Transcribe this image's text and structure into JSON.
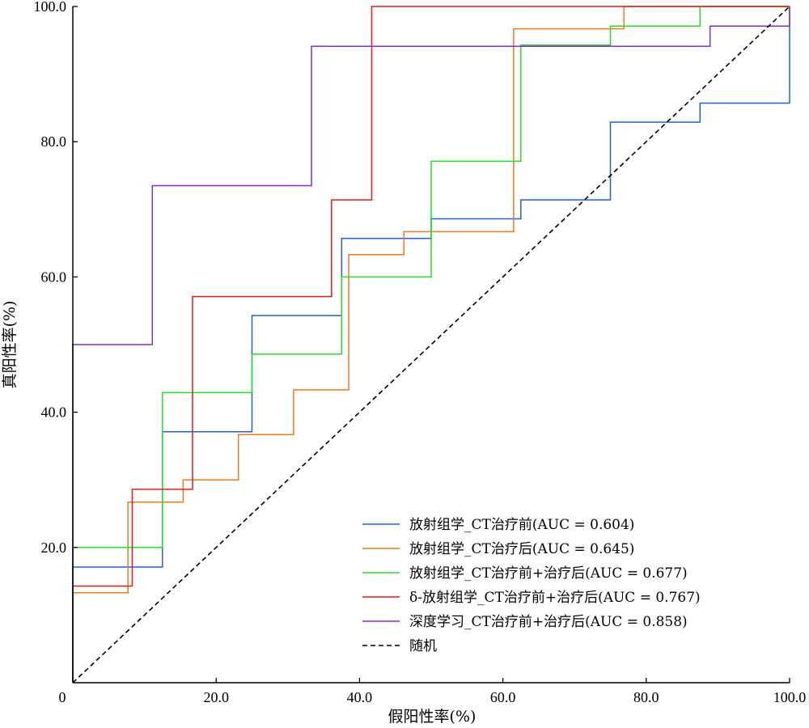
{
  "chart_data": {
    "type": "line",
    "title": "",
    "xlabel": "假阳性率(%)",
    "ylabel": "真阳性率(%)",
    "xlim": [
      0,
      100
    ],
    "ylim": [
      0,
      100
    ],
    "x_ticks": [
      {
        "value": 0,
        "label": "0"
      },
      {
        "value": 20,
        "label": "20.0"
      },
      {
        "value": 40,
        "label": "40.0"
      },
      {
        "value": 60,
        "label": "60.0"
      },
      {
        "value": 80,
        "label": "80.0"
      },
      {
        "value": 100,
        "label": "100.0"
      }
    ],
    "y_ticks": [
      {
        "value": 20,
        "label": "20.0"
      },
      {
        "value": 40,
        "label": "40.0"
      },
      {
        "value": 60,
        "label": "60.0"
      },
      {
        "value": 80,
        "label": "80.0"
      },
      {
        "value": 100,
        "label": "100.0"
      }
    ],
    "grid": false,
    "legend_position": "bottom-right",
    "series": [
      {
        "name": "放射组学_CT治疗前(AUC = 0.604)",
        "color": "#1f5fe0",
        "points": [
          [
            0,
            0
          ],
          [
            0,
            17.1
          ],
          [
            12.5,
            17.1
          ],
          [
            12.5,
            37.1
          ],
          [
            25,
            37.1
          ],
          [
            25,
            54.3
          ],
          [
            37.5,
            54.3
          ],
          [
            37.5,
            65.7
          ],
          [
            50,
            65.7
          ],
          [
            50,
            68.6
          ],
          [
            62.5,
            68.6
          ],
          [
            62.5,
            71.4
          ],
          [
            75,
            71.4
          ],
          [
            75,
            82.9
          ],
          [
            87.5,
            82.9
          ],
          [
            87.5,
            85.7
          ],
          [
            100,
            85.7
          ],
          [
            100,
            100
          ]
        ]
      },
      {
        "name": "放射组学_CT治疗后(AUC = 0.645)",
        "color": "#f07a1e",
        "points": [
          [
            0,
            0
          ],
          [
            0,
            13.3
          ],
          [
            7.7,
            13.3
          ],
          [
            7.7,
            26.7
          ],
          [
            15.4,
            26.7
          ],
          [
            15.4,
            30
          ],
          [
            23.1,
            30
          ],
          [
            23.1,
            36.7
          ],
          [
            30.8,
            36.7
          ],
          [
            30.8,
            43.3
          ],
          [
            38.5,
            43.3
          ],
          [
            38.5,
            63.3
          ],
          [
            46.2,
            63.3
          ],
          [
            46.2,
            66.7
          ],
          [
            61.5,
            66.7
          ],
          [
            61.5,
            96.7
          ],
          [
            76.9,
            96.7
          ],
          [
            76.9,
            100
          ],
          [
            100,
            100
          ]
        ]
      },
      {
        "name": "放射组学_CT治疗前+治疗后(AUC = 0.677)",
        "color": "#22e022",
        "points": [
          [
            0,
            0
          ],
          [
            0,
            20
          ],
          [
            12.5,
            20
          ],
          [
            12.5,
            42.9
          ],
          [
            25,
            42.9
          ],
          [
            25,
            48.6
          ],
          [
            37.5,
            48.6
          ],
          [
            37.5,
            60
          ],
          [
            50,
            60
          ],
          [
            50,
            77.1
          ],
          [
            62.5,
            77.1
          ],
          [
            62.5,
            94.3
          ],
          [
            75,
            94.3
          ],
          [
            75,
            97.1
          ],
          [
            87.5,
            97.1
          ],
          [
            87.5,
            100
          ],
          [
            100,
            100
          ]
        ]
      },
      {
        "name": "δ-放射组学_CT治疗前+治疗后(AUC = 0.767)",
        "color": "#e41a1a",
        "points": [
          [
            0,
            0
          ],
          [
            0,
            14.3
          ],
          [
            8.3,
            14.3
          ],
          [
            8.3,
            28.6
          ],
          [
            16.7,
            28.6
          ],
          [
            16.7,
            57.1
          ],
          [
            36.1,
            57.1
          ],
          [
            36.1,
            71.4
          ],
          [
            41.7,
            71.4
          ],
          [
            41.7,
            100
          ],
          [
            100,
            100
          ]
        ]
      },
      {
        "name": "深度学习_CT治疗前+治疗后(AUC = 0.858)",
        "color": "#7f2fd4",
        "points": [
          [
            0,
            0
          ],
          [
            0,
            50
          ],
          [
            11.1,
            50
          ],
          [
            11.1,
            73.5
          ],
          [
            33.3,
            73.5
          ],
          [
            33.3,
            94.1
          ],
          [
            88.9,
            94.1
          ],
          [
            88.9,
            97.1
          ],
          [
            100,
            97.1
          ],
          [
            100,
            100
          ]
        ]
      },
      {
        "name": "随机",
        "color": "#000000",
        "dashed": true,
        "points": [
          [
            0,
            0
          ],
          [
            100,
            100
          ]
        ]
      }
    ]
  }
}
